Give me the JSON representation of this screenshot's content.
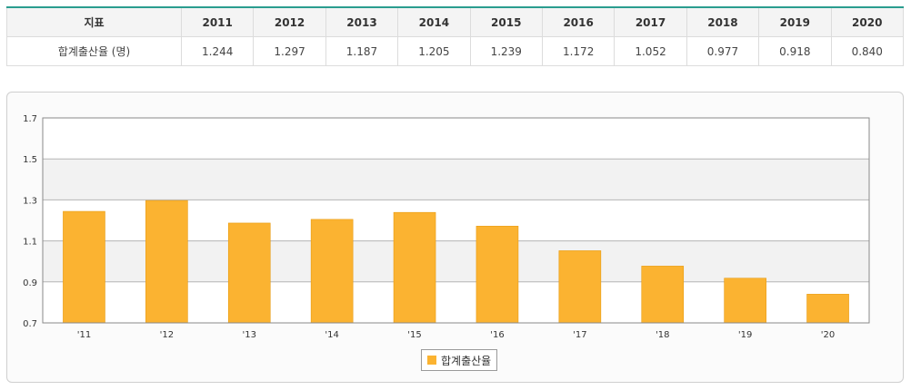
{
  "table": {
    "header_label": "지표",
    "row_label": "합계출산율 (명)",
    "years": [
      "2011",
      "2012",
      "2013",
      "2014",
      "2015",
      "2016",
      "2017",
      "2018",
      "2019",
      "2020"
    ],
    "values": [
      "1.244",
      "1.297",
      "1.187",
      "1.205",
      "1.239",
      "1.172",
      "1.052",
      "0.977",
      "0.918",
      "0.840"
    ]
  },
  "chart_data": {
    "type": "bar",
    "categories": [
      "'11",
      "'12",
      "'13",
      "'14",
      "'15",
      "'16",
      "'17",
      "'18",
      "'19",
      "'20"
    ],
    "series": [
      {
        "name": "합계출산율",
        "values": [
          1.244,
          1.297,
          1.187,
          1.205,
          1.239,
          1.172,
          1.052,
          0.977,
          0.918,
          0.84
        ],
        "color": "#fbb331"
      }
    ],
    "yticks": [
      "0.7",
      "0.9",
      "1.1",
      "1.3",
      "1.5",
      "1.7"
    ],
    "ylim": [
      0.7,
      1.7
    ],
    "grid": true,
    "legend_position": "bottom-center"
  },
  "colors": {
    "bar": "#fbb331",
    "bar_edge": "#e89b10",
    "band_shade": "#f2f2f2",
    "table_top_border": "#2a9d8f"
  }
}
